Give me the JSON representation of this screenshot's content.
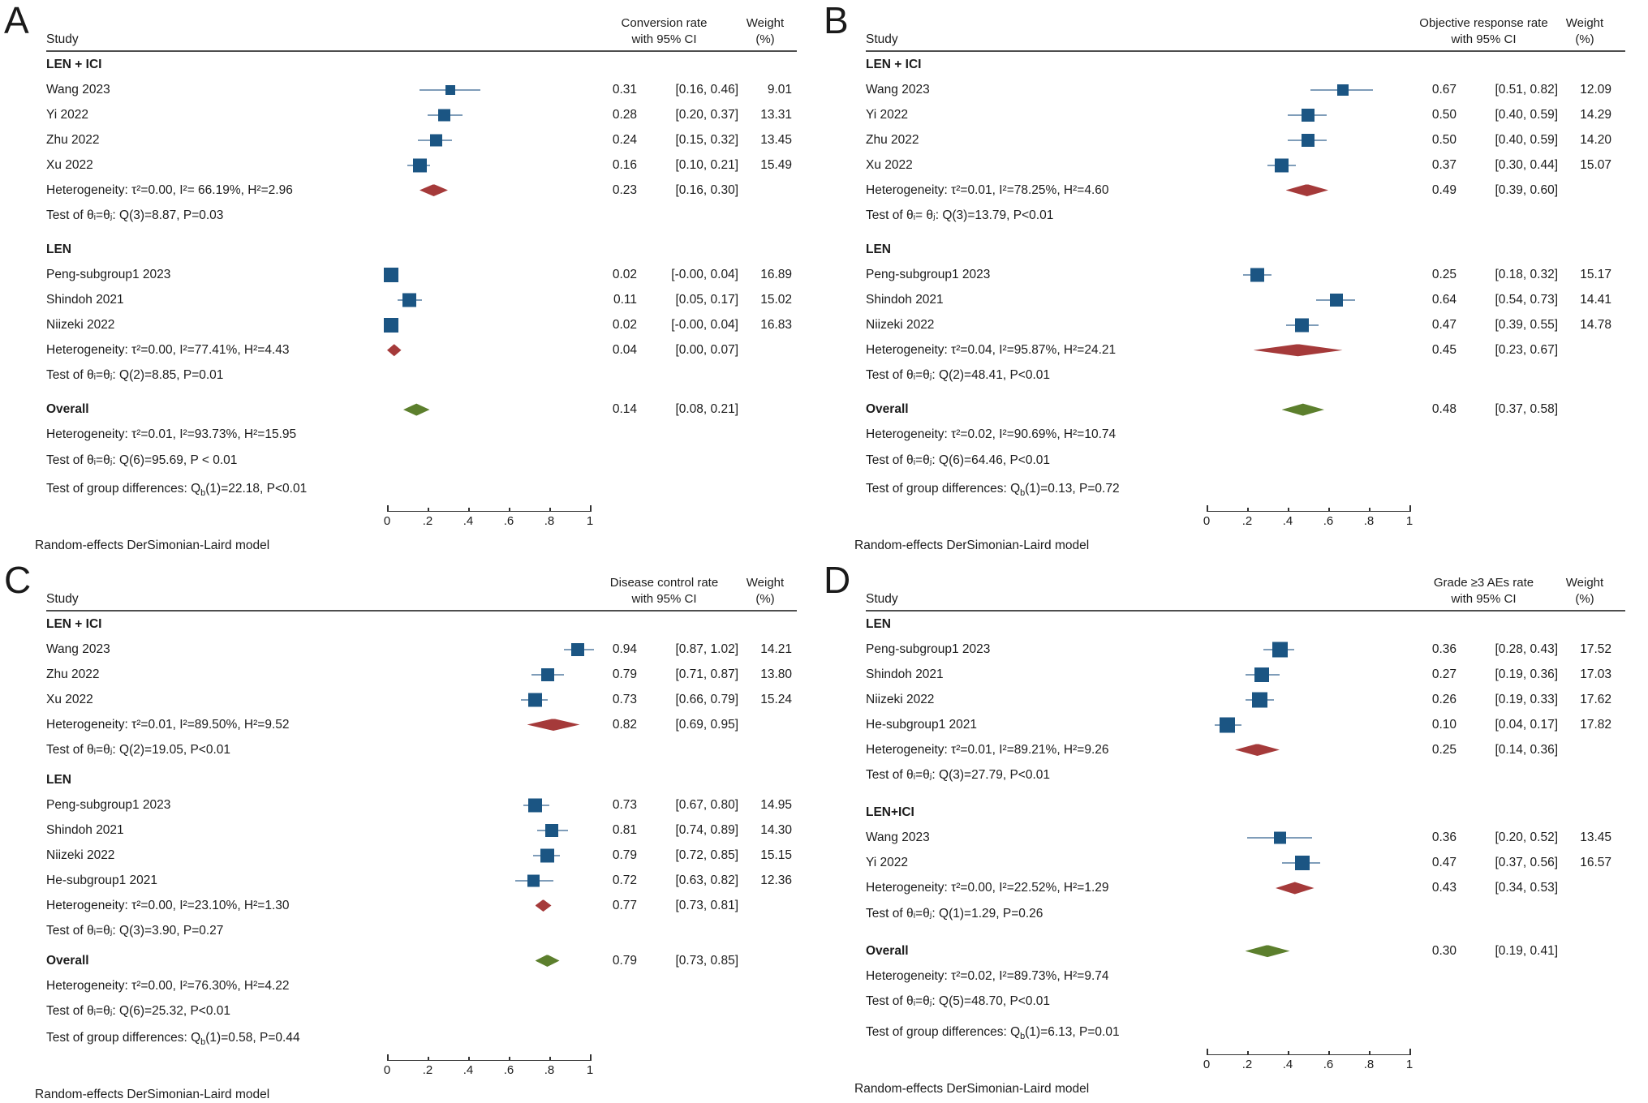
{
  "colors": {
    "marker_blue": "#1b5583",
    "ci_line_blue": "#7f9db9",
    "subgroup_diamond_red": "#a53a3a",
    "overall_diamond_green": "#5c7f2d",
    "header_rule_gray": "#4f4f4f",
    "axis_gray": "#333333",
    "text_black": "#1c1c1c"
  },
  "chart_data": [
    {
      "type": "forest",
      "letter": "A",
      "study_header": "Study",
      "effect_header_line1": "Conversion rate",
      "effect_header_line2": "with 95% CI",
      "weight_header_line1": "Weight",
      "weight_header_line2": "(%)",
      "xlim": [
        0,
        1
      ],
      "xticks": [
        "0",
        ".2",
        ".4",
        ".6",
        ".8",
        "1"
      ],
      "footer": "Random-effects DerSimonian-Laird model",
      "groups": [
        {
          "label": "LEN + ICI",
          "studies": [
            {
              "name": "Wang 2023",
              "est": 0.31,
              "lo": 0.16,
              "hi": 0.46,
              "weight": 9.01,
              "est_text": "0.31",
              "ci_text": "[0.16, 0.46]",
              "weight_text": "9.01"
            },
            {
              "name": "Yi 2022",
              "est": 0.28,
              "lo": 0.2,
              "hi": 0.37,
              "weight": 13.31,
              "est_text": "0.28",
              "ci_text": "[0.20, 0.37]",
              "weight_text": "13.31"
            },
            {
              "name": "Zhu 2022",
              "est": 0.24,
              "lo": 0.15,
              "hi": 0.32,
              "weight": 13.45,
              "est_text": "0.24",
              "ci_text": "[0.15, 0.32]",
              "weight_text": "13.45"
            },
            {
              "name": "Xu 2022",
              "est": 0.16,
              "lo": 0.1,
              "hi": 0.21,
              "weight": 15.49,
              "est_text": "0.16",
              "ci_text": "[0.10, 0.21]",
              "weight_text": "15.49"
            }
          ],
          "heterogeneity": {
            "label": "Heterogeneity: τ²=0.00, I²= 66.19%, H²=2.96",
            "est": 0.23,
            "lo": 0.16,
            "hi": 0.3,
            "est_text": "0.23",
            "ci_text": "[0.16, 0.30]"
          },
          "test": "Test of θᵢ=θⱼ: Q(3)=8.87, P=0.03"
        },
        {
          "label": "LEN",
          "studies": [
            {
              "name": "Peng-subgroup1 2023",
              "est": 0.02,
              "lo": 0.0,
              "hi": 0.04,
              "weight": 16.89,
              "est_text": "0.02",
              "ci_text": "[-0.00, 0.04]",
              "weight_text": "16.89"
            },
            {
              "name": "Shindoh 2021",
              "est": 0.11,
              "lo": 0.05,
              "hi": 0.17,
              "weight": 15.02,
              "est_text": "0.11",
              "ci_text": "[0.05, 0.17]",
              "weight_text": "15.02"
            },
            {
              "name": "Niizeki 2022",
              "est": 0.02,
              "lo": 0.0,
              "hi": 0.04,
              "weight": 16.83,
              "est_text": "0.02",
              "ci_text": "[-0.00, 0.04]",
              "weight_text": "16.83"
            }
          ],
          "heterogeneity": {
            "label": "Heterogeneity: τ²=0.00, I²=77.41%, H²=4.43",
            "est": 0.04,
            "lo": 0.0,
            "hi": 0.07,
            "est_text": "0.04",
            "ci_text": "[0.00, 0.07]"
          },
          "test": "Test of θᵢ=θⱼ: Q(2)=8.85, P=0.01"
        }
      ],
      "overall": {
        "label": "Overall",
        "est": 0.14,
        "lo": 0.08,
        "hi": 0.21,
        "est_text": "0.14",
        "ci_text": "[0.08, 0.21]",
        "heterogeneity": "Heterogeneity: τ²=0.01, I²=93.73%, H²=15.95",
        "test": "Test of θᵢ=θⱼ: Q(6)=95.69, P < 0.01"
      },
      "group_diff_pre": "Test of group differences: Q",
      "group_diff_sub": "b",
      "group_diff_post": "(1)=22.18, P<0.01"
    },
    {
      "type": "forest",
      "letter": "B",
      "study_header": "Study",
      "effect_header_line1": "Objective response rate",
      "effect_header_line2": "with 95% CI",
      "weight_header_line1": "Weight",
      "weight_header_line2": "(%)",
      "xlim": [
        0,
        1
      ],
      "xticks": [
        "0",
        ".2",
        ".4",
        ".6",
        ".8",
        "1"
      ],
      "footer": "Random-effects DerSimonian-Laird model",
      "groups": [
        {
          "label": "LEN + ICI",
          "studies": [
            {
              "name": "Wang 2023",
              "est": 0.67,
              "lo": 0.51,
              "hi": 0.82,
              "weight": 12.09,
              "est_text": "0.67",
              "ci_text": "[0.51, 0.82]",
              "weight_text": "12.09"
            },
            {
              "name": "Yi 2022",
              "est": 0.5,
              "lo": 0.4,
              "hi": 0.59,
              "weight": 14.29,
              "est_text": "0.50",
              "ci_text": "[0.40, 0.59]",
              "weight_text": "14.29"
            },
            {
              "name": "Zhu 2022",
              "est": 0.5,
              "lo": 0.4,
              "hi": 0.59,
              "weight": 14.2,
              "est_text": "0.50",
              "ci_text": "[0.40, 0.59]",
              "weight_text": "14.20"
            },
            {
              "name": "Xu 2022",
              "est": 0.37,
              "lo": 0.3,
              "hi": 0.44,
              "weight": 15.07,
              "est_text": "0.37",
              "ci_text": "[0.30, 0.44]",
              "weight_text": "15.07"
            }
          ],
          "heterogeneity": {
            "label": "Heterogeneity: τ²=0.01, I²=78.25%, H²=4.60",
            "est": 0.49,
            "lo": 0.39,
            "hi": 0.6,
            "est_text": "0.49",
            "ci_text": "[0.39, 0.60]"
          },
          "test": "Test of θᵢ= θⱼ: Q(3)=13.79, P<0.01"
        },
        {
          "label": "LEN",
          "studies": [
            {
              "name": "Peng-subgroup1 2023",
              "est": 0.25,
              "lo": 0.18,
              "hi": 0.32,
              "weight": 15.17,
              "est_text": "0.25",
              "ci_text": "[0.18, 0.32]",
              "weight_text": "15.17"
            },
            {
              "name": "Shindoh 2021",
              "est": 0.64,
              "lo": 0.54,
              "hi": 0.73,
              "weight": 14.41,
              "est_text": "0.64",
              "ci_text": "[0.54, 0.73]",
              "weight_text": "14.41"
            },
            {
              "name": "Niizeki 2022",
              "est": 0.47,
              "lo": 0.39,
              "hi": 0.55,
              "weight": 14.78,
              "est_text": "0.47",
              "ci_text": "[0.39, 0.55]",
              "weight_text": "14.78"
            }
          ],
          "heterogeneity": {
            "label": "Heterogeneity: τ²=0.04, I²=95.87%, H²=24.21",
            "est": 0.45,
            "lo": 0.23,
            "hi": 0.67,
            "est_text": "0.45",
            "ci_text": "[0.23, 0.67]"
          },
          "test": "Test of θᵢ=θⱼ: Q(2)=48.41, P<0.01"
        }
      ],
      "overall": {
        "label": "Overall",
        "est": 0.48,
        "lo": 0.37,
        "hi": 0.58,
        "est_text": "0.48",
        "ci_text": "[0.37, 0.58]",
        "heterogeneity": "Heterogeneity: τ²=0.02, I²=90.69%, H²=10.74",
        "test": "Test of θᵢ=θⱼ: Q(6)=64.46, P<0.01"
      },
      "group_diff_pre": "Test of group differences: Q",
      "group_diff_sub": "b",
      "group_diff_post": "(1)=0.13, P=0.72"
    },
    {
      "type": "forest",
      "letter": "C",
      "study_header": "Study",
      "effect_header_line1": "Disease control rate",
      "effect_header_line2": "with 95% CI",
      "weight_header_line1": "Weight",
      "weight_header_line2": "(%)",
      "xlim": [
        0,
        1
      ],
      "xticks": [
        "0",
        ".2",
        ".4",
        ".6",
        ".8",
        "1"
      ],
      "footer": "Random-effects DerSimonian-Laird model",
      "groups": [
        {
          "label": "LEN + ICI",
          "studies": [
            {
              "name": "Wang 2023",
              "est": 0.94,
              "lo": 0.87,
              "hi": 1.02,
              "weight": 14.21,
              "est_text": "0.94",
              "ci_text": "[0.87, 1.02]",
              "weight_text": "14.21"
            },
            {
              "name": "Zhu 2022",
              "est": 0.79,
              "lo": 0.71,
              "hi": 0.87,
              "weight": 13.8,
              "est_text": "0.79",
              "ci_text": "[0.71, 0.87]",
              "weight_text": "13.80"
            },
            {
              "name": "Xu 2022",
              "est": 0.73,
              "lo": 0.66,
              "hi": 0.79,
              "weight": 15.24,
              "est_text": "0.73",
              "ci_text": "[0.66, 0.79]",
              "weight_text": "15.24"
            }
          ],
          "heterogeneity": {
            "label": "Heterogeneity: τ²=0.01, I²=89.50%, H²=9.52",
            "est": 0.82,
            "lo": 0.69,
            "hi": 0.95,
            "est_text": "0.82",
            "ci_text": "[0.69, 0.95]"
          },
          "test": "Test of θᵢ=θⱼ: Q(2)=19.05, P<0.01"
        },
        {
          "label": "LEN",
          "studies": [
            {
              "name": "Peng-subgroup1 2023",
              "est": 0.73,
              "lo": 0.67,
              "hi": 0.8,
              "weight": 14.95,
              "est_text": "0.73",
              "ci_text": "[0.67, 0.80]",
              "weight_text": "14.95"
            },
            {
              "name": "Shindoh 2021",
              "est": 0.81,
              "lo": 0.74,
              "hi": 0.89,
              "weight": 14.3,
              "est_text": "0.81",
              "ci_text": "[0.74, 0.89]",
              "weight_text": "14.30"
            },
            {
              "name": "Niizeki 2022",
              "est": 0.79,
              "lo": 0.72,
              "hi": 0.85,
              "weight": 15.15,
              "est_text": "0.79",
              "ci_text": "[0.72, 0.85]",
              "weight_text": "15.15"
            },
            {
              "name": "He-subgroup1 2021",
              "est": 0.72,
              "lo": 0.63,
              "hi": 0.82,
              "weight": 12.36,
              "est_text": "0.72",
              "ci_text": "[0.63, 0.82]",
              "weight_text": "12.36"
            }
          ],
          "heterogeneity": {
            "label": "Heterogeneity: τ²=0.00, I²=23.10%, H²=1.30",
            "est": 0.77,
            "lo": 0.73,
            "hi": 0.81,
            "est_text": "0.77",
            "ci_text": "[0.73, 0.81]"
          },
          "test": "Test of θᵢ=θⱼ: Q(3)=3.90, P=0.27"
        }
      ],
      "overall": {
        "label": "Overall",
        "est": 0.79,
        "lo": 0.73,
        "hi": 0.85,
        "est_text": "0.79",
        "ci_text": "[0.73, 0.85]",
        "heterogeneity": "Heterogeneity: τ²=0.00, I²=76.30%, H²=4.22",
        "test": "Test of θᵢ=θⱼ: Q(6)=25.32, P<0.01"
      },
      "group_diff_pre": "Test of group differences: Q",
      "group_diff_sub": "b",
      "group_diff_post": "(1)=0.58, P=0.44"
    },
    {
      "type": "forest",
      "letter": "D",
      "study_header": "Study",
      "effect_header_line1": "Grade ≥3 AEs rate",
      "effect_header_line2": "with 95% CI",
      "weight_header_line1": "Weight",
      "weight_header_line2": "(%)",
      "xlim": [
        0,
        1
      ],
      "xticks": [
        "0",
        ".2",
        ".4",
        ".6",
        ".8",
        "1"
      ],
      "footer": "Random-effects DerSimonian-Laird model",
      "groups": [
        {
          "label": "LEN",
          "studies": [
            {
              "name": "Peng-subgroup1 2023",
              "est": 0.36,
              "lo": 0.28,
              "hi": 0.43,
              "weight": 17.52,
              "est_text": "0.36",
              "ci_text": "[0.28, 0.43]",
              "weight_text": "17.52"
            },
            {
              "name": "Shindoh 2021",
              "est": 0.27,
              "lo": 0.19,
              "hi": 0.36,
              "weight": 17.03,
              "est_text": "0.27",
              "ci_text": "[0.19, 0.36]",
              "weight_text": "17.03"
            },
            {
              "name": "Niizeki 2022",
              "est": 0.26,
              "lo": 0.19,
              "hi": 0.33,
              "weight": 17.62,
              "est_text": "0.26",
              "ci_text": "[0.19, 0.33]",
              "weight_text": "17.62"
            },
            {
              "name": "He-subgroup1 2021",
              "est": 0.1,
              "lo": 0.04,
              "hi": 0.17,
              "weight": 17.82,
              "est_text": "0.10",
              "ci_text": "[0.04, 0.17]",
              "weight_text": "17.82"
            }
          ],
          "heterogeneity": {
            "label": "Heterogeneity: τ²=0.01, I²=89.21%, H²=9.26",
            "est": 0.25,
            "lo": 0.14,
            "hi": 0.36,
            "est_text": "0.25",
            "ci_text": "[0.14, 0.36]"
          },
          "test": "Test of θᵢ=θⱼ: Q(3)=27.79, P<0.01"
        },
        {
          "label": "LEN+ICI",
          "studies": [
            {
              "name": "Wang 2023",
              "est": 0.36,
              "lo": 0.2,
              "hi": 0.52,
              "weight": 13.45,
              "est_text": "0.36",
              "ci_text": "[0.20, 0.52]",
              "weight_text": "13.45"
            },
            {
              "name": "Yi 2022",
              "est": 0.47,
              "lo": 0.37,
              "hi": 0.56,
              "weight": 16.57,
              "est_text": "0.47",
              "ci_text": "[0.37, 0.56]",
              "weight_text": "16.57"
            }
          ],
          "heterogeneity": {
            "label": "Heterogeneity: τ²=0.00, I²=22.52%, H²=1.29",
            "est": 0.43,
            "lo": 0.34,
            "hi": 0.53,
            "est_text": "0.43",
            "ci_text": "[0.34, 0.53]"
          },
          "test": "Test of θᵢ=θⱼ: Q(1)=1.29, P=0.26"
        }
      ],
      "overall": {
        "label": "Overall",
        "est": 0.3,
        "lo": 0.19,
        "hi": 0.41,
        "est_text": "0.30",
        "ci_text": "[0.19, 0.41]",
        "heterogeneity": "Heterogeneity: τ²=0.02, I²=89.73%, H²=9.74",
        "test": "Test of θᵢ=θⱼ: Q(5)=48.70, P<0.01"
      },
      "group_diff_pre": "Test of group differences: Q",
      "group_diff_sub": "b",
      "group_diff_post": "(1)=6.13, P=0.01"
    }
  ]
}
